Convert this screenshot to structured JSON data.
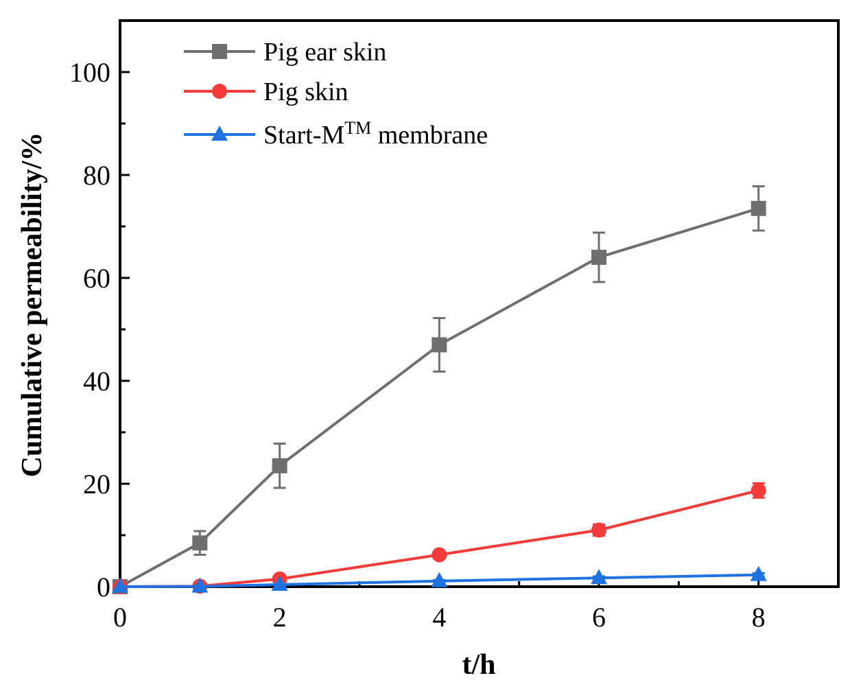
{
  "chart_data": {
    "type": "line",
    "title": "",
    "xlabel": "t/h",
    "ylabel": "Cumulative permeability/%",
    "xlim": [
      0,
      9
    ],
    "ylim": [
      0,
      110
    ],
    "xticks": [
      0,
      2,
      4,
      6,
      8
    ],
    "xticks_minor": [
      1,
      3,
      5,
      7,
      9
    ],
    "yticks": [
      0,
      20,
      40,
      60,
      80,
      100
    ],
    "yticks_minor": [
      10,
      30,
      50,
      70,
      90,
      110
    ],
    "grid": false,
    "legend_position": "top-left",
    "series": [
      {
        "name": "Pig ear skin",
        "marker": "square",
        "color": "#6f6f6f",
        "x": [
          0,
          1,
          2,
          4,
          6,
          8
        ],
        "values": [
          0,
          8.5,
          23.5,
          47,
          64,
          73.5
        ],
        "errors": [
          0,
          2.3,
          4.3,
          5.2,
          4.8,
          4.3
        ]
      },
      {
        "name": "Pig skin",
        "marker": "circle",
        "color": "#f53a3a",
        "x": [
          0,
          1,
          2,
          4,
          6,
          8
        ],
        "values": [
          0,
          0.1,
          1.5,
          6.2,
          11,
          18.7
        ],
        "errors": [
          0,
          0.2,
          0.4,
          0.6,
          1.1,
          1.4
        ]
      },
      {
        "name": "Start-M",
        "name_superscript": "TM",
        "name_suffix": " membrane",
        "marker": "triangle",
        "color": "#1f73e0",
        "x": [
          0,
          1,
          2,
          4,
          6,
          8
        ],
        "values": [
          0,
          0.05,
          0.4,
          1.1,
          1.7,
          2.3
        ],
        "errors": [
          0,
          0.1,
          0.1,
          0.2,
          0.3,
          0.3
        ]
      }
    ]
  }
}
